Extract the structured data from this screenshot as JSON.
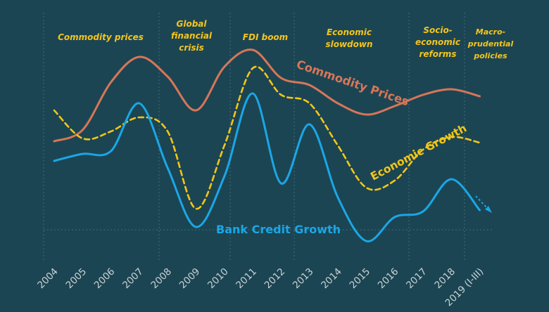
{
  "colors": {
    "background": "#1c4553",
    "commodity": "#d77658",
    "growth": "#f2c618",
    "credit": "#1aa7e6",
    "annotation": "#f4c51c",
    "grid": "#3f6a77",
    "tick": "#c9d3d6"
  },
  "periods": [
    {
      "lines": [
        "Commodity prices"
      ]
    },
    {
      "lines": [
        "Global",
        "financial",
        "crisis"
      ]
    },
    {
      "lines": [
        "FDI boom"
      ]
    },
    {
      "lines": [
        "Economic",
        "slowdown"
      ]
    },
    {
      "lines": [
        "Socio-",
        "economic",
        "reforms"
      ]
    },
    {
      "lines": [
        "Macro-",
        "prudential",
        "policies"
      ]
    }
  ],
  "chart_data": {
    "type": "line",
    "title": "",
    "xlabel": "",
    "ylabel": "",
    "categories": [
      "2004",
      "2005",
      "2006",
      "2007",
      "2008",
      "2009",
      "2010",
      "2011",
      "2012",
      "2013",
      "2014",
      "2015",
      "2016",
      "2017",
      "2018",
      "2019 (I-III)"
    ],
    "grid": "vertical dotted lines at period boundaries",
    "series": [
      {
        "name": "Commodity Prices",
        "style": "solid",
        "values": [
          6.3,
          7.1,
          10.5,
          12.3,
          10.9,
          8.5,
          11.6,
          12.8,
          10.8,
          10.3,
          9.0,
          8.2,
          8.8,
          9.6,
          10.0,
          9.5
        ]
      },
      {
        "name": "Economic Growth",
        "style": "dashed",
        "values": [
          8.5,
          6.5,
          7.0,
          8.0,
          7.0,
          1.5,
          6.0,
          11.5,
          9.6,
          9.0,
          6.0,
          3.0,
          3.5,
          5.7,
          6.6,
          6.2
        ]
      },
      {
        "name": "Bank Credit Growth",
        "style": "solid",
        "values": [
          4.9,
          5.4,
          5.6,
          9.0,
          4.4,
          0.2,
          3.8,
          9.7,
          3.3,
          7.5,
          2.3,
          -0.8,
          0.9,
          1.3,
          3.6,
          1.4
        ]
      }
    ],
    "series_labels": [
      "Commodity Prices",
      "Economic Growth",
      "Bank Credit Growth"
    ],
    "trend_arrow_on": "Bank Credit Growth"
  }
}
